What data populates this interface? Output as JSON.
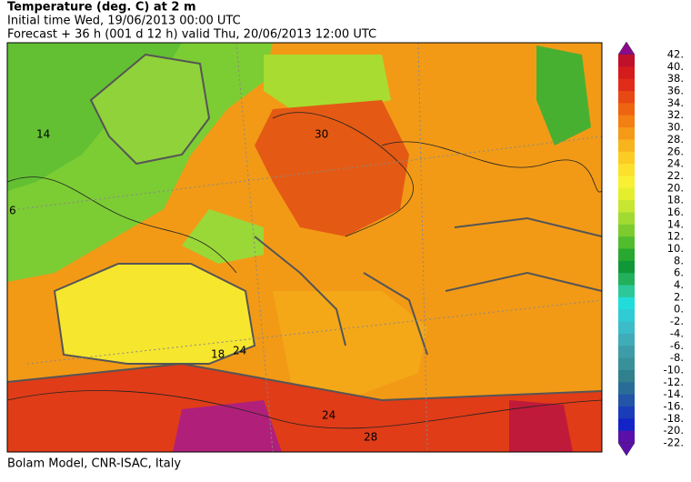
{
  "header": {
    "title": "Temperature (deg. C) at 2 m",
    "line1": "Initial time  Wed, 19/06/2013  00:00 UTC",
    "line2": "Forecast  +  36 h  (001 d 12 h)  valid Thu, 20/06/2013 12:00 UTC"
  },
  "colorbar": {
    "labels": [
      "42.",
      "40.",
      "38.",
      "36.",
      "34.",
      "32.",
      "30.",
      "28.",
      "26.",
      "24.",
      "22.",
      "20.",
      "18.",
      "16.",
      "14.",
      "12.",
      "10.",
      "8.",
      "6.",
      "4.",
      "2.",
      "0.",
      "-2.",
      "-4.",
      "-6.",
      "-8.",
      "-10.",
      "-12.",
      "-14.",
      "-16.",
      "-18.",
      "-20.",
      "-22."
    ],
    "colors": [
      "#8b0a8b",
      "#c0102a",
      "#d41c1c",
      "#e02c18",
      "#e84814",
      "#ee6410",
      "#f28012",
      "#f59a16",
      "#f8b41c",
      "#fbcc24",
      "#fce02c",
      "#f8f032",
      "#e4ee2c",
      "#c6e632",
      "#a2da32",
      "#7ccc30",
      "#50bc2e",
      "#28a82e",
      "#109838",
      "#22b05c",
      "#2cc89a",
      "#22dcdc",
      "#30ccd6",
      "#3cbcc8",
      "#40acb8",
      "#3e9ca8",
      "#389098",
      "#30808e",
      "#2a6c98",
      "#2254a8",
      "#1a3cb8",
      "#1224c8",
      "#5a10a8"
    ]
  },
  "map": {
    "contour_labels": [
      "14",
      "6",
      "30",
      "24",
      "18",
      "24",
      "28"
    ]
  },
  "footer": "Bolam Model, CNR-ISAC, Italy"
}
